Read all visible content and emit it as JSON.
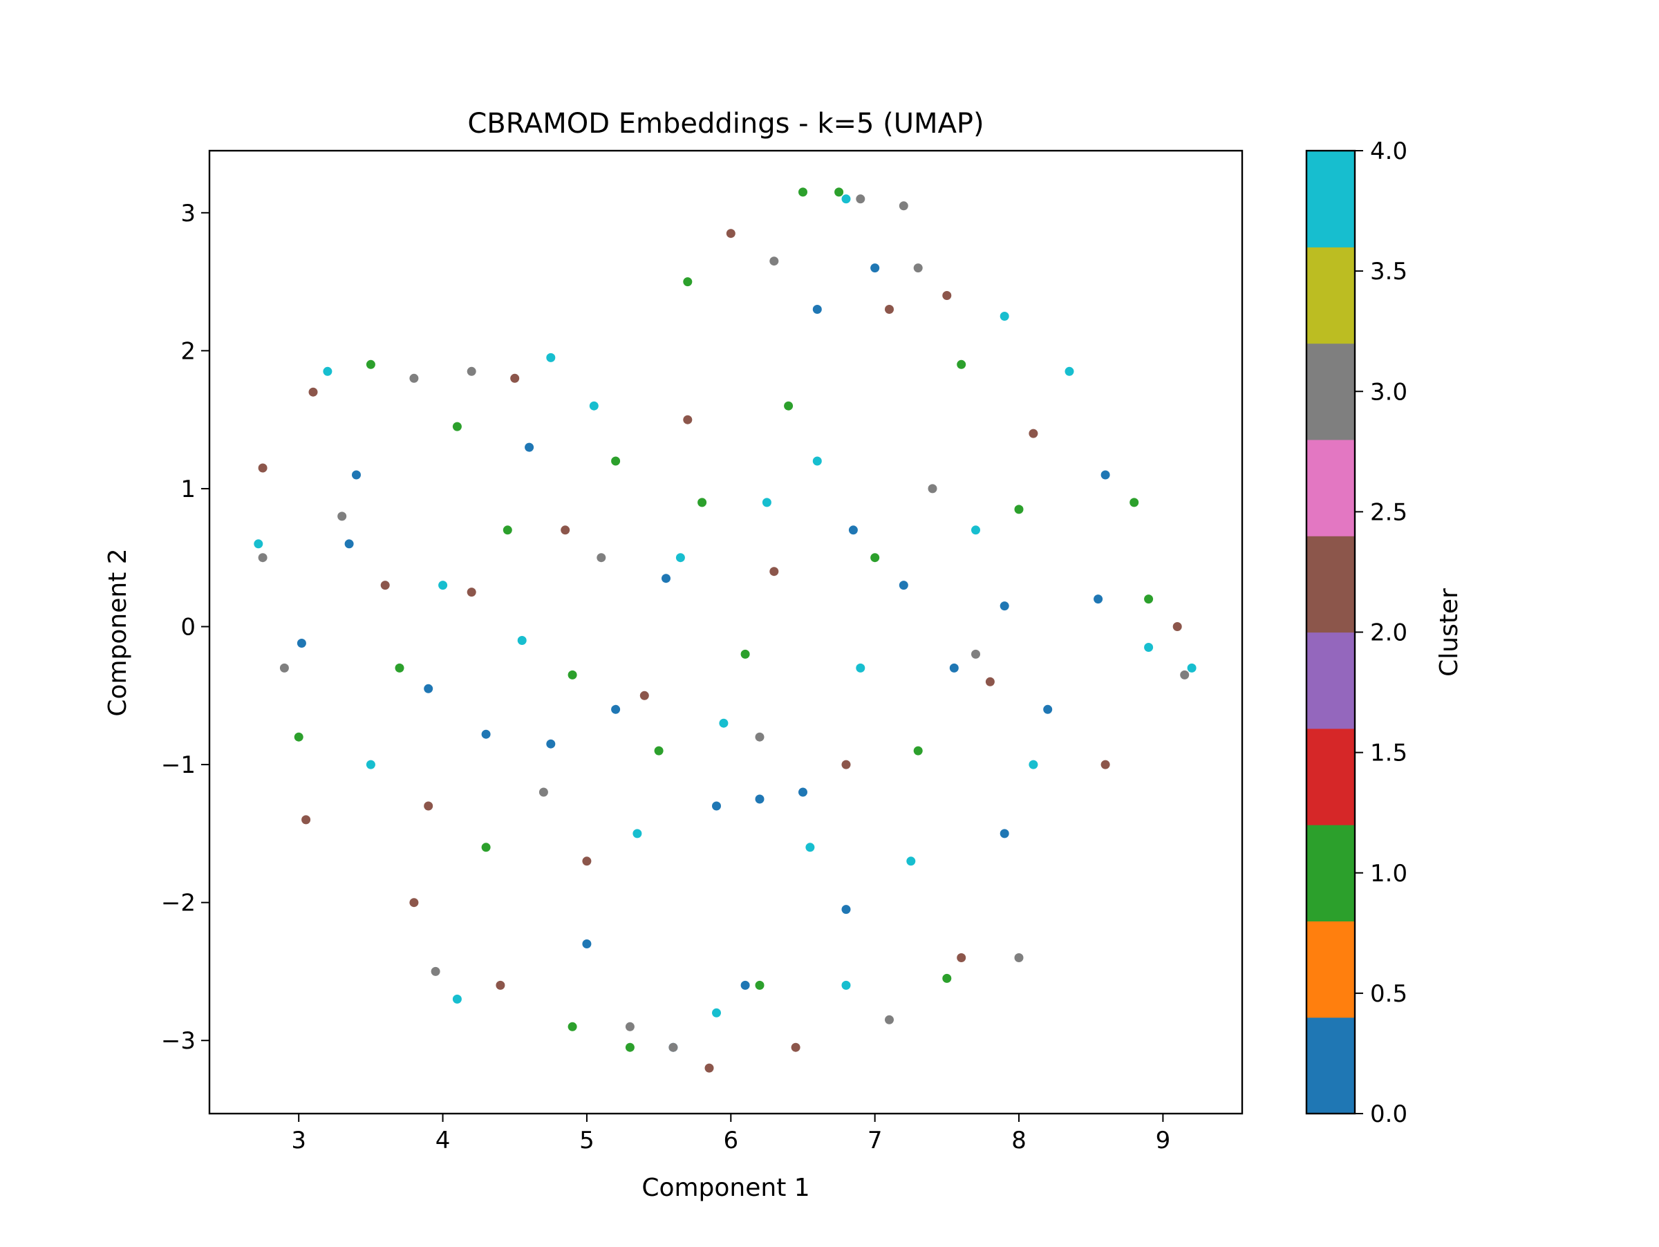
{
  "chart_data": {
    "type": "scatter",
    "title": "CBRAMOD Embeddings - k=5 (UMAP)",
    "xlabel": "Component 1",
    "ylabel": "Component 2",
    "xlim": [
      2.38,
      9.55
    ],
    "ylim": [
      -3.53,
      3.45
    ],
    "xticks": [
      3,
      4,
      5,
      6,
      7,
      8,
      9
    ],
    "yticks": [
      -3,
      -2,
      -1,
      0,
      1,
      2,
      3
    ],
    "x_tick_labels": [
      "3",
      "4",
      "5",
      "6",
      "7",
      "8",
      "9"
    ],
    "y_tick_labels": [
      "−3",
      "−2",
      "−1",
      "0",
      "1",
      "2",
      "3"
    ],
    "grid": false,
    "legend": "none",
    "colorbar": {
      "label": "Cluster",
      "range": [
        0.0,
        4.0
      ],
      "ticks": [
        0.0,
        0.5,
        1.0,
        1.5,
        2.0,
        2.5,
        3.0,
        3.5,
        4.0
      ],
      "tick_labels": [
        "0.0",
        "0.5",
        "1.0",
        "1.5",
        "2.0",
        "2.5",
        "3.0",
        "3.5",
        "4.0"
      ],
      "colormap": "tab10",
      "colors": [
        "#1f77b4",
        "#ff7f0e",
        "#2ca02c",
        "#d62728",
        "#9467bd",
        "#8c564b",
        "#e377c2",
        "#7f7f7f",
        "#bcbd22",
        "#17becf"
      ]
    },
    "cluster_colors": {
      "0": "#1f77b4",
      "1": "#2ca02c",
      "2": "#8c564b",
      "3": "#7f7f7f",
      "4": "#17becf"
    },
    "series": [
      {
        "cluster": 0,
        "values": [
          [
            3.02,
            -0.12
          ],
          [
            3.35,
            0.6
          ],
          [
            3.9,
            -0.45
          ],
          [
            4.3,
            -0.78
          ],
          [
            4.75,
            -0.85
          ],
          [
            5.2,
            -0.6
          ],
          [
            5.55,
            0.35
          ],
          [
            5.9,
            -1.3
          ],
          [
            6.2,
            -1.25
          ],
          [
            6.5,
            -1.2
          ],
          [
            6.85,
            0.7
          ],
          [
            7.2,
            0.3
          ],
          [
            7.55,
            -0.3
          ],
          [
            7.9,
            0.15
          ],
          [
            8.2,
            -0.6
          ],
          [
            8.55,
            0.2
          ],
          [
            5.6,
            -3.05
          ],
          [
            6.1,
            -2.6
          ],
          [
            6.6,
            2.3
          ],
          [
            7.0,
            2.6
          ],
          [
            4.6,
            1.3
          ],
          [
            3.4,
            1.1
          ],
          [
            8.6,
            1.1
          ],
          [
            7.9,
            -1.5
          ],
          [
            5.0,
            -2.3
          ],
          [
            6.8,
            -2.05
          ]
        ]
      },
      {
        "cluster": 1,
        "values": [
          [
            3.5,
            1.9
          ],
          [
            3.7,
            -0.3
          ],
          [
            4.1,
            1.45
          ],
          [
            4.45,
            0.7
          ],
          [
            4.9,
            -0.35
          ],
          [
            5.2,
            1.2
          ],
          [
            5.5,
            -0.9
          ],
          [
            5.8,
            0.9
          ],
          [
            6.1,
            -0.2
          ],
          [
            6.4,
            1.6
          ],
          [
            6.5,
            3.15
          ],
          [
            6.75,
            3.15
          ],
          [
            7.0,
            0.5
          ],
          [
            7.3,
            -0.9
          ],
          [
            7.6,
            1.9
          ],
          [
            8.0,
            0.85
          ],
          [
            8.8,
            0.9
          ],
          [
            8.9,
            0.2
          ],
          [
            4.9,
            -2.9
          ],
          [
            5.3,
            -3.05
          ],
          [
            6.2,
            -2.6
          ],
          [
            7.5,
            -2.55
          ],
          [
            4.3,
            -1.6
          ],
          [
            5.7,
            2.5
          ],
          [
            3.0,
            -0.8
          ]
        ]
      },
      {
        "cluster": 2,
        "values": [
          [
            2.75,
            1.15
          ],
          [
            3.1,
            1.7
          ],
          [
            3.6,
            0.3
          ],
          [
            3.9,
            -1.3
          ],
          [
            4.2,
            0.25
          ],
          [
            4.5,
            1.8
          ],
          [
            4.85,
            0.7
          ],
          [
            5.0,
            -1.7
          ],
          [
            5.4,
            -0.5
          ],
          [
            5.7,
            1.5
          ],
          [
            5.85,
            -3.2
          ],
          [
            6.3,
            0.4
          ],
          [
            6.45,
            -3.05
          ],
          [
            6.8,
            -1.0
          ],
          [
            7.1,
            2.3
          ],
          [
            7.5,
            2.4
          ],
          [
            7.8,
            -0.4
          ],
          [
            8.1,
            1.4
          ],
          [
            8.6,
            -1.0
          ],
          [
            9.1,
            0.0
          ],
          [
            3.05,
            -1.4
          ],
          [
            4.4,
            -2.6
          ],
          [
            7.6,
            -2.4
          ],
          [
            6.0,
            2.85
          ],
          [
            3.8,
            -2.0
          ]
        ]
      },
      {
        "cluster": 3,
        "values": [
          [
            2.75,
            0.5
          ],
          [
            2.9,
            -0.3
          ],
          [
            3.3,
            0.8
          ],
          [
            3.8,
            1.8
          ],
          [
            3.95,
            -2.5
          ],
          [
            4.2,
            1.85
          ],
          [
            5.3,
            -2.9
          ],
          [
            5.6,
            -3.05
          ],
          [
            6.3,
            2.65
          ],
          [
            6.9,
            3.1
          ],
          [
            7.1,
            -2.85
          ],
          [
            7.2,
            3.05
          ],
          [
            7.3,
            2.6
          ],
          [
            7.7,
            -0.2
          ],
          [
            8.0,
            -2.4
          ],
          [
            9.15,
            -0.35
          ],
          [
            4.7,
            -1.2
          ],
          [
            6.2,
            -0.8
          ],
          [
            5.1,
            0.5
          ],
          [
            7.4,
            1.0
          ]
        ]
      },
      {
        "cluster": 4,
        "values": [
          [
            2.72,
            0.6
          ],
          [
            3.2,
            1.85
          ],
          [
            3.5,
            -1.0
          ],
          [
            4.0,
            0.3
          ],
          [
            4.1,
            -2.7
          ],
          [
            4.55,
            -0.1
          ],
          [
            5.05,
            1.6
          ],
          [
            5.35,
            -1.5
          ],
          [
            5.65,
            0.5
          ],
          [
            5.95,
            -0.7
          ],
          [
            6.25,
            0.9
          ],
          [
            6.55,
            -1.6
          ],
          [
            6.8,
            3.1
          ],
          [
            6.9,
            -0.3
          ],
          [
            7.25,
            -1.7
          ],
          [
            7.7,
            0.7
          ],
          [
            8.1,
            -1.0
          ],
          [
            8.35,
            1.85
          ],
          [
            8.9,
            -0.15
          ],
          [
            9.2,
            -0.3
          ],
          [
            5.9,
            -2.8
          ],
          [
            6.8,
            -2.6
          ],
          [
            6.6,
            1.2
          ],
          [
            4.75,
            1.95
          ],
          [
            7.9,
            2.25
          ]
        ]
      }
    ]
  }
}
